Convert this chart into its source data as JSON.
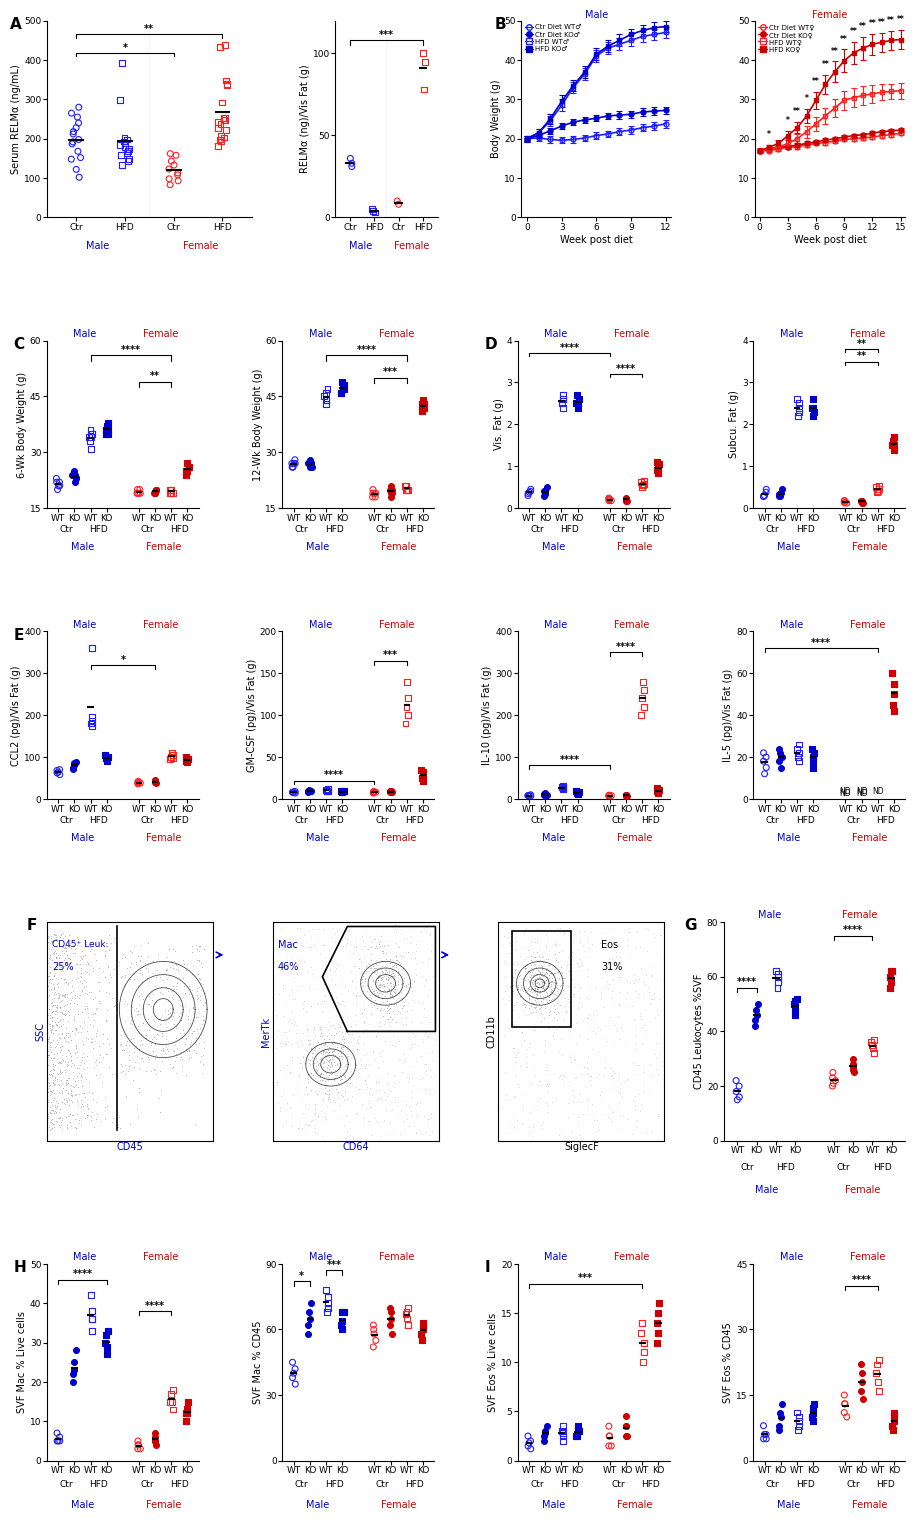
{
  "fig_width": 9.33,
  "fig_height": 15.0,
  "blue_open": "#0000FF",
  "blue_fill": "#0000CD",
  "red_open": "#FF0000",
  "red_fill": "#CC0000"
}
